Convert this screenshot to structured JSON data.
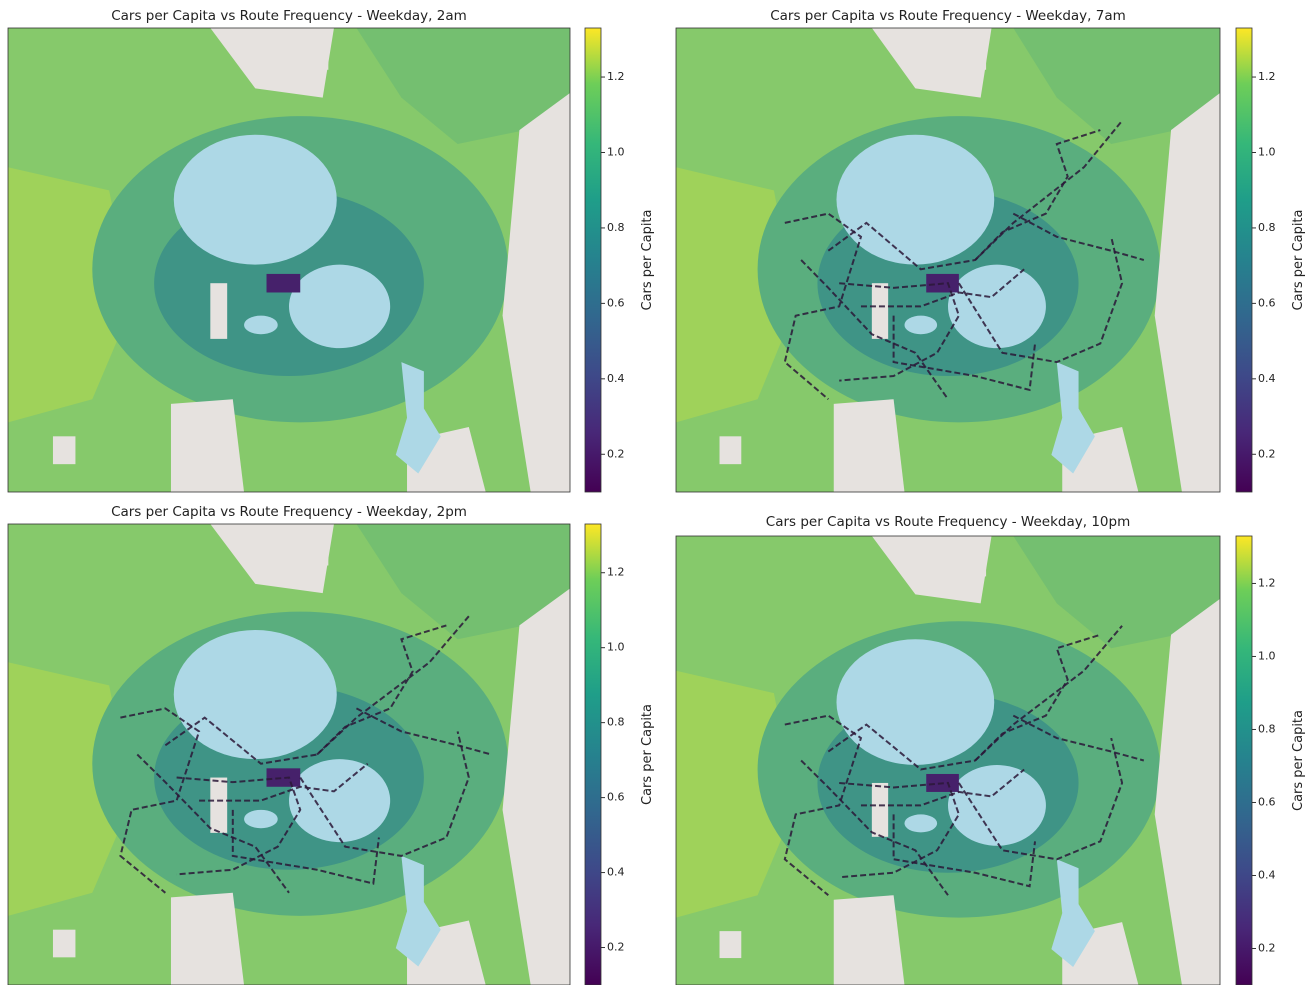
{
  "panels": [
    {
      "title": "Cars per Capita vs Route Frequency - Weekday, 2am",
      "colorbar": {
        "label": "Cars per Capita",
        "lim": [
          0.1,
          1.33
        ],
        "ticks": [
          0.2,
          0.4,
          0.6,
          0.8,
          {
            "value": 1,
            "label": "1.0"
          },
          1.2
        ]
      }
    },
    {
      "title": "Cars per Capita vs Route Frequency - Weekday, 7am",
      "colorbar": {
        "label": "Cars per Capita",
        "lim": [
          0.1,
          1.33
        ],
        "ticks": [
          0.2,
          0.4,
          0.6,
          0.8,
          {
            "value": 1,
            "label": "1.0"
          },
          1.2
        ]
      }
    },
    {
      "title": "Cars per Capita vs Route Frequency - Weekday, 2pm",
      "colorbar": {
        "label": "Cars per Capita",
        "lim": [
          0.1,
          1.33
        ],
        "ticks": [
          0.2,
          0.4,
          0.6,
          0.8,
          {
            "value": 1,
            "label": "1.0"
          },
          1.2
        ]
      }
    },
    {
      "title": "Cars per Capita vs Route Frequency - Weekday, 10pm",
      "colorbar": {
        "label": "Cars per Capita",
        "lim": [
          0.1,
          1.33
        ],
        "ticks": [
          0.2,
          0.4,
          0.6,
          0.8,
          {
            "value": 1,
            "label": "1.0"
          },
          1.2
        ]
      }
    }
  ]
}
